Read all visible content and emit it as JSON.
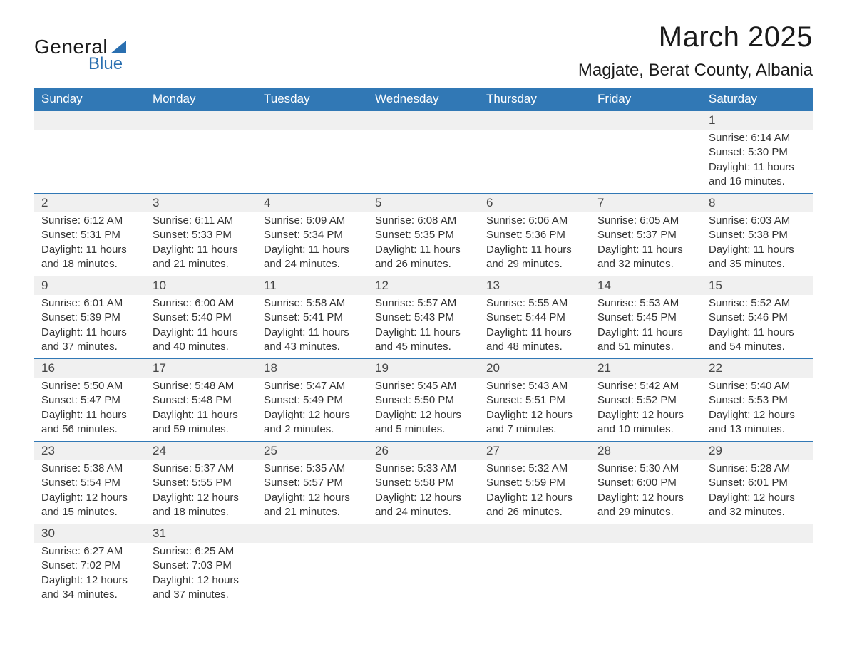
{
  "brand": {
    "word1": "General",
    "word2": "Blue",
    "triangle_color": "#2a6fb0"
  },
  "title": "March 2025",
  "location": "Magjate, Berat County, Albania",
  "colors": {
    "header_bg": "#3178b5",
    "header_text": "#ffffff",
    "row_separator": "#3178b5",
    "daynum_bg": "#f0f0f0",
    "body_text": "#333333",
    "page_bg": "#ffffff"
  },
  "typography": {
    "title_fontsize": 40,
    "location_fontsize": 24,
    "header_fontsize": 17,
    "daynum_fontsize": 17,
    "data_fontsize": 15
  },
  "layout": {
    "columns": 7,
    "rows": 6
  },
  "weekdays": [
    "Sunday",
    "Monday",
    "Tuesday",
    "Wednesday",
    "Thursday",
    "Friday",
    "Saturday"
  ],
  "labels": {
    "sunrise": "Sunrise:",
    "sunset": "Sunset:",
    "daylight": "Daylight:"
  },
  "weeks": [
    [
      null,
      null,
      null,
      null,
      null,
      null,
      {
        "n": "1",
        "sunrise": "6:14 AM",
        "sunset": "5:30 PM",
        "daylight": "11 hours and 16 minutes."
      }
    ],
    [
      {
        "n": "2",
        "sunrise": "6:12 AM",
        "sunset": "5:31 PM",
        "daylight": "11 hours and 18 minutes."
      },
      {
        "n": "3",
        "sunrise": "6:11 AM",
        "sunset": "5:33 PM",
        "daylight": "11 hours and 21 minutes."
      },
      {
        "n": "4",
        "sunrise": "6:09 AM",
        "sunset": "5:34 PM",
        "daylight": "11 hours and 24 minutes."
      },
      {
        "n": "5",
        "sunrise": "6:08 AM",
        "sunset": "5:35 PM",
        "daylight": "11 hours and 26 minutes."
      },
      {
        "n": "6",
        "sunrise": "6:06 AM",
        "sunset": "5:36 PM",
        "daylight": "11 hours and 29 minutes."
      },
      {
        "n": "7",
        "sunrise": "6:05 AM",
        "sunset": "5:37 PM",
        "daylight": "11 hours and 32 minutes."
      },
      {
        "n": "8",
        "sunrise": "6:03 AM",
        "sunset": "5:38 PM",
        "daylight": "11 hours and 35 minutes."
      }
    ],
    [
      {
        "n": "9",
        "sunrise": "6:01 AM",
        "sunset": "5:39 PM",
        "daylight": "11 hours and 37 minutes."
      },
      {
        "n": "10",
        "sunrise": "6:00 AM",
        "sunset": "5:40 PM",
        "daylight": "11 hours and 40 minutes."
      },
      {
        "n": "11",
        "sunrise": "5:58 AM",
        "sunset": "5:41 PM",
        "daylight": "11 hours and 43 minutes."
      },
      {
        "n": "12",
        "sunrise": "5:57 AM",
        "sunset": "5:43 PM",
        "daylight": "11 hours and 45 minutes."
      },
      {
        "n": "13",
        "sunrise": "5:55 AM",
        "sunset": "5:44 PM",
        "daylight": "11 hours and 48 minutes."
      },
      {
        "n": "14",
        "sunrise": "5:53 AM",
        "sunset": "5:45 PM",
        "daylight": "11 hours and 51 minutes."
      },
      {
        "n": "15",
        "sunrise": "5:52 AM",
        "sunset": "5:46 PM",
        "daylight": "11 hours and 54 minutes."
      }
    ],
    [
      {
        "n": "16",
        "sunrise": "5:50 AM",
        "sunset": "5:47 PM",
        "daylight": "11 hours and 56 minutes."
      },
      {
        "n": "17",
        "sunrise": "5:48 AM",
        "sunset": "5:48 PM",
        "daylight": "11 hours and 59 minutes."
      },
      {
        "n": "18",
        "sunrise": "5:47 AM",
        "sunset": "5:49 PM",
        "daylight": "12 hours and 2 minutes."
      },
      {
        "n": "19",
        "sunrise": "5:45 AM",
        "sunset": "5:50 PM",
        "daylight": "12 hours and 5 minutes."
      },
      {
        "n": "20",
        "sunrise": "5:43 AM",
        "sunset": "5:51 PM",
        "daylight": "12 hours and 7 minutes."
      },
      {
        "n": "21",
        "sunrise": "5:42 AM",
        "sunset": "5:52 PM",
        "daylight": "12 hours and 10 minutes."
      },
      {
        "n": "22",
        "sunrise": "5:40 AM",
        "sunset": "5:53 PM",
        "daylight": "12 hours and 13 minutes."
      }
    ],
    [
      {
        "n": "23",
        "sunrise": "5:38 AM",
        "sunset": "5:54 PM",
        "daylight": "12 hours and 15 minutes."
      },
      {
        "n": "24",
        "sunrise": "5:37 AM",
        "sunset": "5:55 PM",
        "daylight": "12 hours and 18 minutes."
      },
      {
        "n": "25",
        "sunrise": "5:35 AM",
        "sunset": "5:57 PM",
        "daylight": "12 hours and 21 minutes."
      },
      {
        "n": "26",
        "sunrise": "5:33 AM",
        "sunset": "5:58 PM",
        "daylight": "12 hours and 24 minutes."
      },
      {
        "n": "27",
        "sunrise": "5:32 AM",
        "sunset": "5:59 PM",
        "daylight": "12 hours and 26 minutes."
      },
      {
        "n": "28",
        "sunrise": "5:30 AM",
        "sunset": "6:00 PM",
        "daylight": "12 hours and 29 minutes."
      },
      {
        "n": "29",
        "sunrise": "5:28 AM",
        "sunset": "6:01 PM",
        "daylight": "12 hours and 32 minutes."
      }
    ],
    [
      {
        "n": "30",
        "sunrise": "6:27 AM",
        "sunset": "7:02 PM",
        "daylight": "12 hours and 34 minutes."
      },
      {
        "n": "31",
        "sunrise": "6:25 AM",
        "sunset": "7:03 PM",
        "daylight": "12 hours and 37 minutes."
      },
      null,
      null,
      null,
      null,
      null
    ]
  ]
}
